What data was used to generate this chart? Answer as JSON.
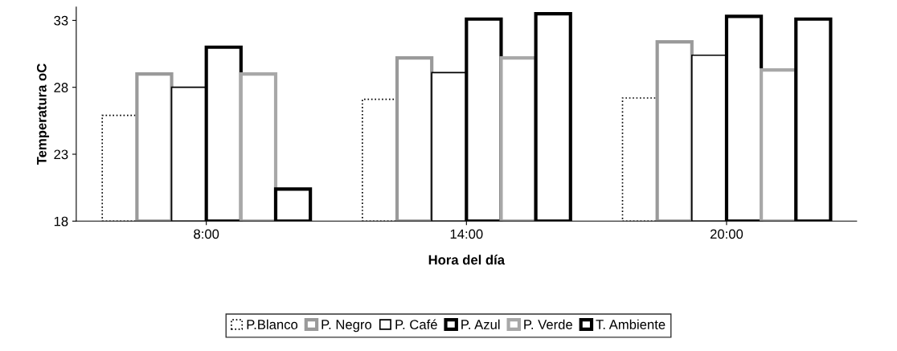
{
  "chart_data": {
    "type": "bar",
    "xlabel": "Hora del día",
    "ylabel": "Temperatura oC",
    "categories": [
      "8:00",
      "14:00",
      "20:00"
    ],
    "series": [
      {
        "name": "P.Blanco",
        "color": "#000000",
        "line_style": "dotted",
        "values": [
          25.9,
          27.1,
          27.2
        ]
      },
      {
        "name": "P. Negro",
        "color": "#9a9a9a",
        "values": [
          29.0,
          30.2,
          31.4
        ]
      },
      {
        "name": "P. Café",
        "color": "#000000",
        "values": [
          28.0,
          29.1,
          30.4
        ]
      },
      {
        "name": "P. Azul",
        "color": "#000000",
        "values": [
          31.0,
          33.1,
          33.3
        ]
      },
      {
        "name": "P. Verde",
        "color": "#a8a8a8",
        "values": [
          29.0,
          30.2,
          29.3
        ]
      },
      {
        "name": "T. Ambiente",
        "color": "#000000",
        "values": [
          20.4,
          33.5,
          33.1
        ]
      }
    ],
    "ylim": [
      18,
      34
    ],
    "yticks": [
      18,
      23,
      28,
      33
    ],
    "grid": false,
    "legend": "bottom"
  }
}
